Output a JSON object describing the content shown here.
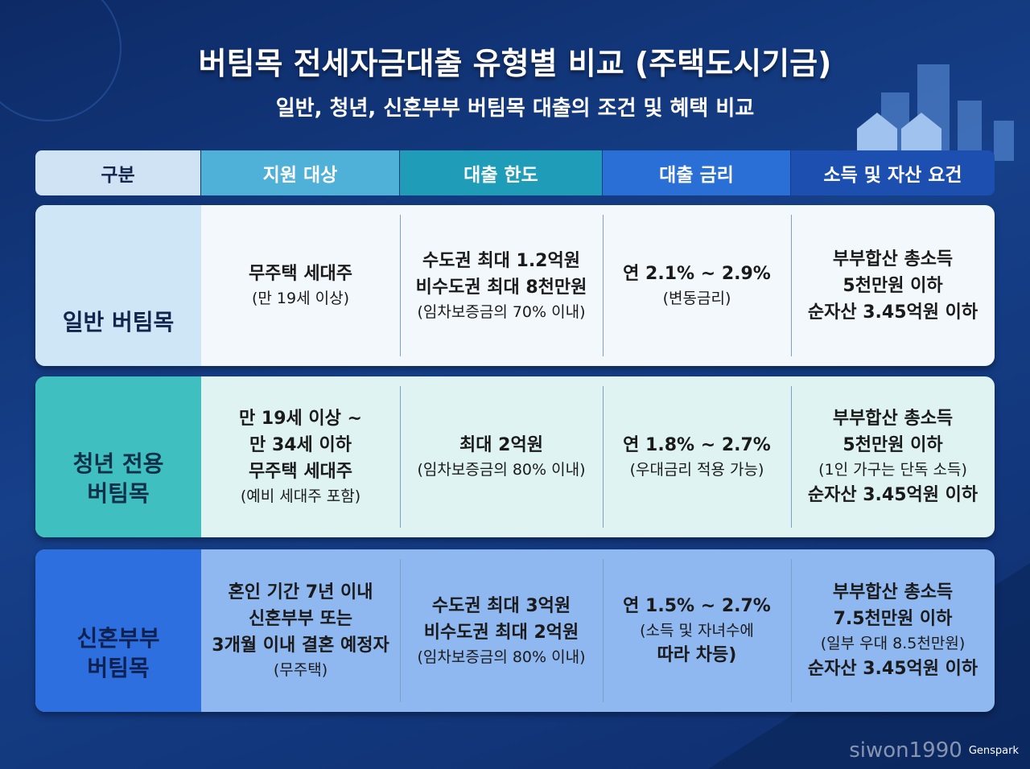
{
  "header": {
    "title": "버팀목 전세자금대출 유형별 비교 (주택도시기금)",
    "subtitle": "일반, 청년, 신혼부부 버팀목 대출의 조건 및 혜택 비교"
  },
  "table": {
    "columns": [
      "구분",
      "지원 대상",
      "대출 한도",
      "대출 금리",
      "소득 및 자산 요건"
    ],
    "rows": [
      {
        "label": [
          "일반 버팀목"
        ],
        "cells": [
          [
            "무주택 세대주",
            "(만 19세 이상)"
          ],
          [
            "수도권 최대 1.2억원",
            "비수도권 최대 8천만원",
            "(임차보증금의 70% 이내)"
          ],
          [
            "연 2.1% ~ 2.9%",
            "(변동금리)"
          ],
          [
            "부부합산 총소득",
            "5천만원 이하",
            "순자산 3.45억원 이하"
          ]
        ]
      },
      {
        "label": [
          "청년 전용",
          "버팀목"
        ],
        "cells": [
          [
            "만 19세 이상 ~",
            "만 34세 이하",
            "무주택 세대주",
            "(예비 세대주 포함)"
          ],
          [
            "최대 2억원",
            "(임차보증금의 80% 이내)"
          ],
          [
            "연 1.8% ~ 2.7%",
            "(우대금리 적용 가능)"
          ],
          [
            "부부합산 총소득",
            "5천만원 이하",
            "(1인 가구는 단독 소득)",
            "순자산 3.45억원 이하"
          ]
        ]
      },
      {
        "label": [
          "신혼부부",
          "버팀목"
        ],
        "cells": [
          [
            "혼인 기간 7년 이내",
            "신혼부부 또는",
            "3개월 이내 결혼 예정자",
            "(무주택)"
          ],
          [
            "수도권 최대 3억원",
            "비수도권 최대 2억원",
            "(임차보증금의 80% 이내)"
          ],
          [
            "연 1.5% ~ 2.7%",
            "(소득 및 자녀수에",
            "따라 차등)"
          ],
          [
            "부부합산 총소득",
            "7.5천만원 이하",
            "(일부 우대 8.5천만원)",
            "순자산 3.45억원 이하"
          ]
        ]
      }
    ]
  },
  "footer": {
    "watermark": "siwon1990",
    "brand": "Genspark"
  }
}
